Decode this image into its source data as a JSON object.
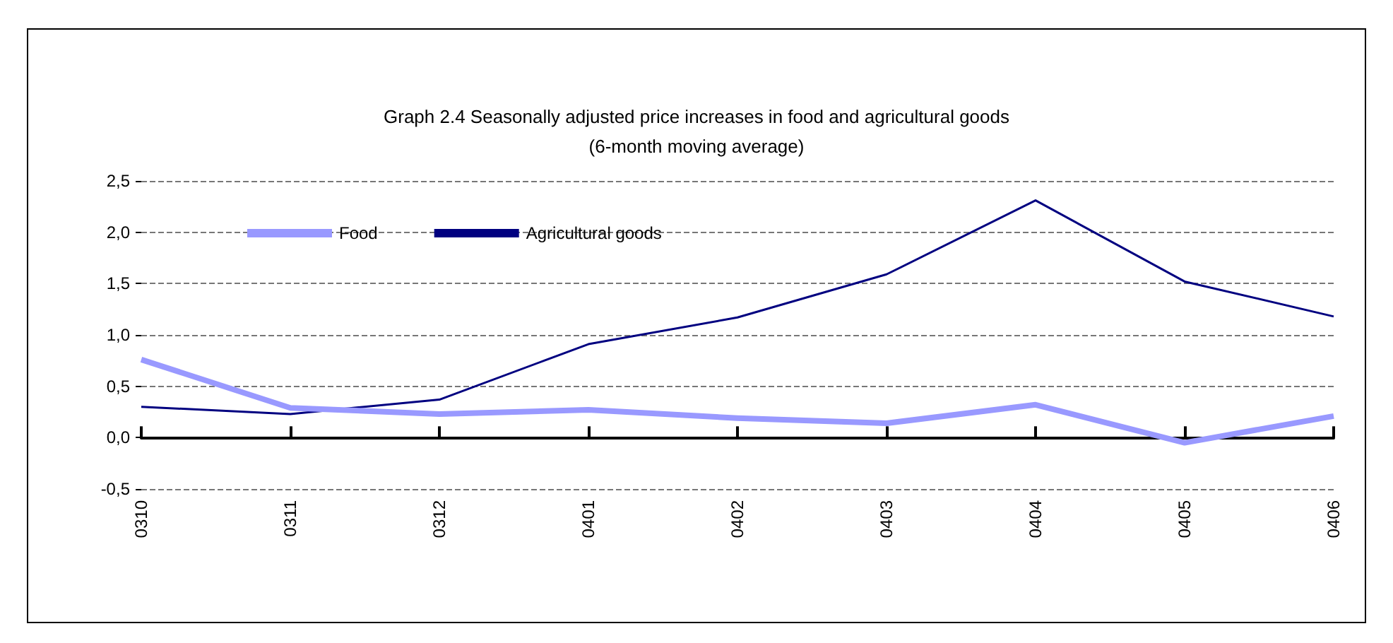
{
  "chart_data": {
    "type": "line",
    "title": "Graph 2.4 Seasonally adjusted price increases in food and agricultural goods",
    "subtitle": "(6-month moving average)",
    "categories": [
      "0310",
      "0311",
      "0312",
      "0401",
      "0402",
      "0403",
      "0404",
      "0405",
      "0406"
    ],
    "series": [
      {
        "name": "Food",
        "color": "#9999ff",
        "values": [
          0.76,
          0.29,
          0.23,
          0.27,
          0.19,
          0.14,
          0.32,
          -0.05,
          0.21
        ]
      },
      {
        "name": "Agricultural goods",
        "color": "#000080",
        "values": [
          0.3,
          0.23,
          0.37,
          0.91,
          1.17,
          1.59,
          2.31,
          1.52,
          1.18
        ]
      }
    ],
    "ylim": [
      -0.5,
      2.5
    ],
    "yticks": [
      {
        "value": -0.5,
        "label": "-0,5"
      },
      {
        "value": 0,
        "label": "0,0"
      },
      {
        "value": 0.5,
        "label": "0,5"
      },
      {
        "value": 1,
        "label": "1,0"
      },
      {
        "value": 1.5,
        "label": "1,5"
      },
      {
        "value": 2,
        "label": "2,0"
      },
      {
        "value": 2.5,
        "label": "2,5"
      }
    ],
    "grid": "y",
    "legend": "top left",
    "marker": "none",
    "line_style": "solid"
  }
}
